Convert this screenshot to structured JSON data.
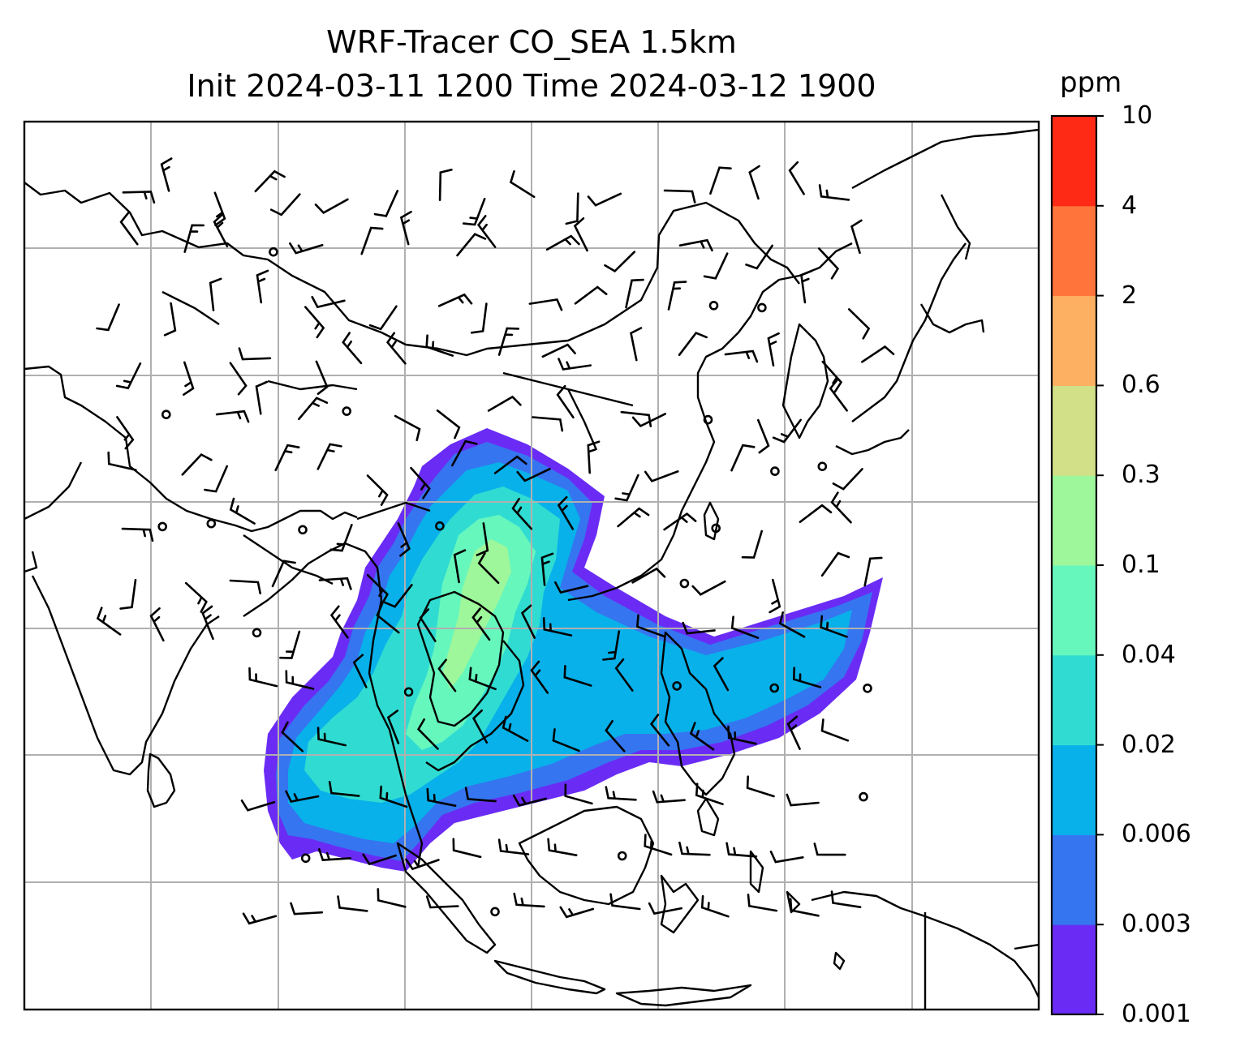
{
  "figure": {
    "title_line1": "WRF-Tracer CO_SEA 1.5km",
    "title_line2": "Init 2024-03-11 1200 Time 2024-03-12 1900"
  },
  "colorbar": {
    "unit": "ppm",
    "levels": [
      "0.001",
      "0.003",
      "0.006",
      "0.02",
      "0.04",
      "0.1",
      "0.3",
      "0.6",
      "2",
      "4",
      "10"
    ],
    "colors": [
      "#6a2cf5",
      "#3575f0",
      "#08b1ea",
      "#30dcd2",
      "#66f7bd",
      "#9ef79a",
      "#d2e087",
      "#fdb062",
      "#ff743b",
      "#ff2a16"
    ]
  },
  "map": {
    "grid": true,
    "coastline_color": "#000000",
    "grid_color": "#b0b0b0",
    "plume_colors": {
      "outer": "#6a2cf5",
      "low": "#3575f0",
      "mid": "#08b1ea",
      "high": "#30dcd2",
      "peak": "#66f7bd",
      "max": "#9ef79a"
    },
    "wind_barbs": "wind-barb-field"
  }
}
